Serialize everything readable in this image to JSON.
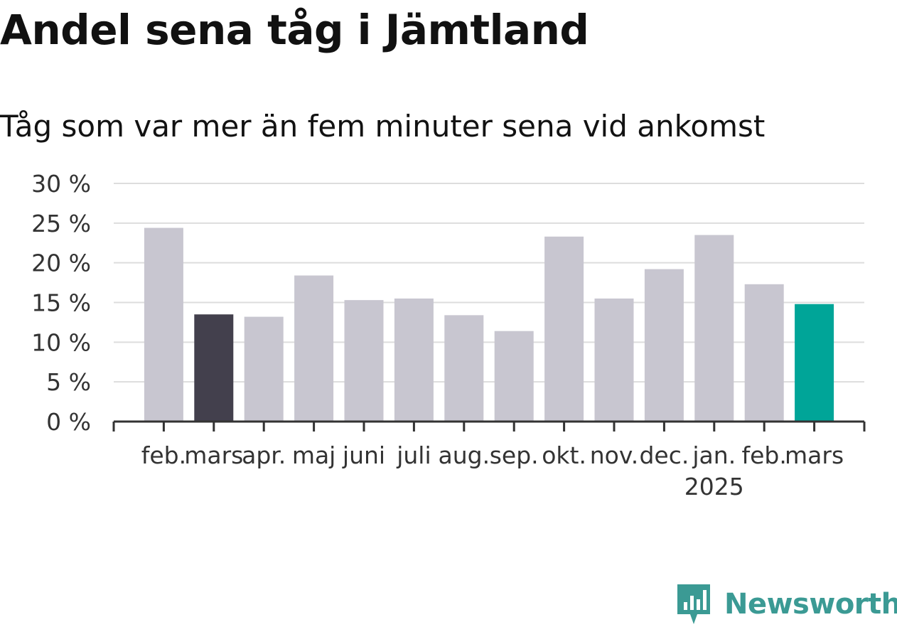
{
  "title": "Andel sena tåg i Jämtland",
  "subtitle": "Tåg som var mer än fem minuter sena vid ankomst",
  "brand": {
    "name": "Newsworthy",
    "icon": "newsworthy-logo-icon",
    "color": "#3b9a94"
  },
  "colors": {
    "bar_default": "#c8c6d0",
    "bar_reference": "#43404d",
    "bar_current": "#00a598",
    "grid": "#dddddd",
    "axis": "#333333",
    "text": "#333333"
  },
  "chart_data": {
    "type": "bar",
    "categories": [
      "feb.",
      "mars",
      "apr.",
      "maj",
      "juni",
      "juli",
      "aug.",
      "sep.",
      "okt.",
      "nov.",
      "dec.",
      "jan.",
      "feb.",
      "mars"
    ],
    "category_sublabels": [
      "",
      "",
      "",
      "",
      "",
      "",
      "",
      "",
      "",
      "",
      "",
      "2025",
      "",
      ""
    ],
    "values": [
      24.4,
      13.5,
      13.2,
      18.4,
      15.3,
      15.5,
      13.4,
      11.4,
      23.3,
      15.5,
      19.2,
      23.5,
      17.3,
      14.8
    ],
    "highlight": [
      "default",
      "reference",
      "default",
      "default",
      "default",
      "default",
      "default",
      "default",
      "default",
      "default",
      "default",
      "default",
      "default",
      "current"
    ],
    "yticks": [
      "0 %",
      "5 %",
      "10 %",
      "15 %",
      "20 %",
      "25 %",
      "30 %"
    ],
    "ylim": [
      0,
      30
    ],
    "grid": true
  }
}
